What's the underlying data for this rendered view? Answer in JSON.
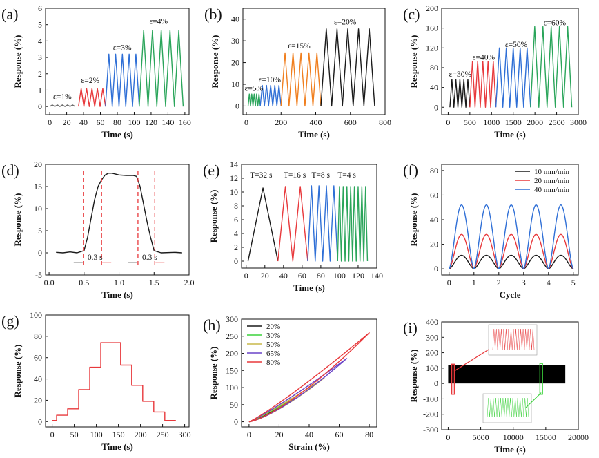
{
  "chart_data": [
    {
      "panel": "(a)",
      "type": "line",
      "xlabel": "Time (s)",
      "ylabel": "Response (%)",
      "xlim": [
        -5,
        165
      ],
      "ylim": [
        -0.5,
        6
      ],
      "xticks": [
        0,
        20,
        40,
        60,
        80,
        100,
        120,
        140,
        160
      ],
      "yticks": [
        0,
        1,
        2,
        3,
        4,
        5,
        6
      ],
      "annotations": [
        {
          "text": "ε=1%",
          "x": 4,
          "y": 0.45
        },
        {
          "text": "ε=2%",
          "x": 37,
          "y": 1.45
        },
        {
          "text": "ε=3%",
          "x": 75,
          "y": 3.45
        },
        {
          "text": "ε=4%",
          "x": 118,
          "y": 5.05
        }
      ],
      "series": [
        {
          "color": "#707070",
          "wave": "tri",
          "t0": 0,
          "t1": 30,
          "cycles": 5,
          "peak": 0.1
        },
        {
          "color": "#e8393c",
          "wave": "tri",
          "t0": 34,
          "t1": 66,
          "cycles": 5,
          "peak": 1.1
        },
        {
          "color": "#2f6fd6",
          "wave": "tri",
          "t0": 66,
          "t1": 106,
          "cycles": 5,
          "peak": 3.2
        },
        {
          "color": "#2aa55a",
          "wave": "tri",
          "t0": 106,
          "t1": 158,
          "cycles": 5,
          "peak": 4.65
        }
      ]
    },
    {
      "panel": "(b)",
      "type": "line",
      "xlabel": "Time (s)",
      "ylabel": "Response (%)",
      "xlim": [
        -20,
        800
      ],
      "ylim": [
        -4,
        45
      ],
      "xticks": [
        0,
        200,
        400,
        600,
        800
      ],
      "yticks": [
        0,
        10,
        20,
        30,
        40
      ],
      "annotations": [
        {
          "text": "ε=5%",
          "x": -10,
          "y": 7
        },
        {
          "text": "ε=10%",
          "x": 70,
          "y": 11
        },
        {
          "text": "ε=15%",
          "x": 240,
          "y": 26.5
        },
        {
          "text": "ε=20%",
          "x": 505,
          "y": 37.5
        }
      ],
      "series": [
        {
          "color": "#2aa55a",
          "wave": "tri",
          "t0": 10,
          "t1": 80,
          "cycles": 5,
          "peak": 5.5
        },
        {
          "color": "#2f6fd6",
          "wave": "tri",
          "t0": 80,
          "t1": 200,
          "cycles": 5,
          "peak": 9.5
        },
        {
          "color": "#f07f1f",
          "wave": "tri",
          "t0": 200,
          "t1": 430,
          "cycles": 5,
          "peak": 24.5
        },
        {
          "color": "#1a1a1a",
          "wave": "tri",
          "t0": 430,
          "t1": 740,
          "cycles": 5,
          "peak": 35.5
        }
      ]
    },
    {
      "panel": "(c)",
      "type": "line",
      "xlabel": "Time (s)",
      "ylabel": "Response (%)",
      "xlim": [
        -150,
        3000
      ],
      "ylim": [
        -15,
        200
      ],
      "xticks": [
        0,
        500,
        1000,
        1500,
        2000,
        2500,
        3000
      ],
      "yticks": [
        0,
        40,
        80,
        120,
        160,
        200
      ],
      "annotations": [
        {
          "text": "ε=30%",
          "x": 20,
          "y": 62
        },
        {
          "text": "ε=40%",
          "x": 560,
          "y": 96
        },
        {
          "text": "ε=50%",
          "x": 1310,
          "y": 122
        },
        {
          "text": "ε=60%",
          "x": 2200,
          "y": 166
        }
      ],
      "series": [
        {
          "color": "#1a1a1a",
          "wave": "tri",
          "t0": 40,
          "t1": 500,
          "cycles": 5,
          "peak": 56
        },
        {
          "color": "#e8393c",
          "wave": "tri",
          "t0": 500,
          "t1": 1100,
          "cycles": 5,
          "peak": 93
        },
        {
          "color": "#2f6fd6",
          "wave": "tri",
          "t0": 1100,
          "t1": 1900,
          "cycles": 5,
          "peak": 120
        },
        {
          "color": "#2aa55a",
          "wave": "tri",
          "t0": 1900,
          "t1": 2850,
          "cycles": 5,
          "peak": 163
        }
      ]
    },
    {
      "panel": "(d)",
      "type": "line",
      "xlabel": "Time (s)",
      "ylabel": "Response (%)",
      "xlim": [
        -0.05,
        2.0
      ],
      "ylim": [
        -5,
        20
      ],
      "xticks": [
        0.0,
        0.5,
        1.0,
        1.5,
        2.0
      ],
      "xtick_labels": [
        "0.0",
        "0.5",
        "1.0",
        "1.5",
        "2.0"
      ],
      "yticks": [
        -5,
        0,
        5,
        10,
        15,
        20
      ],
      "vlines": [
        0.49,
        0.75,
        1.27,
        1.51
      ],
      "annotations": [
        {
          "text": "0.3 s",
          "x": 0.55,
          "y": -1.6
        },
        {
          "text": "0.3 s",
          "x": 1.33,
          "y": -1.6
        }
      ],
      "series": [
        {
          "color": "#1a1a1a",
          "wave": "points",
          "x": [
            0.1,
            0.2,
            0.3,
            0.4,
            0.5,
            0.55,
            0.6,
            0.65,
            0.7,
            0.75,
            0.8,
            0.85,
            0.9,
            1.0,
            1.1,
            1.2,
            1.25,
            1.3,
            1.35,
            1.4,
            1.45,
            1.5,
            1.6,
            1.8,
            1.9
          ],
          "y": [
            0.1,
            0.0,
            0.2,
            0.0,
            0.5,
            3.5,
            7.8,
            12.0,
            15.0,
            16.5,
            17.6,
            18.0,
            18.0,
            17.6,
            17.5,
            17.5,
            17.3,
            15.0,
            11.0,
            7.0,
            3.5,
            0.5,
            0.0,
            0.1,
            0.0
          ]
        }
      ]
    },
    {
      "panel": "(e)",
      "type": "line",
      "xlabel": "Time (s)",
      "ylabel": "Response (%)",
      "xlim": [
        -5,
        140
      ],
      "ylim": [
        -1,
        14
      ],
      "xticks": [
        0,
        20,
        40,
        60,
        80,
        100,
        120,
        140
      ],
      "yticks": [
        0,
        2,
        4,
        6,
        8,
        10,
        12,
        14
      ],
      "annotations": [
        {
          "text": "T=32 s",
          "x": 4,
          "y": 12.1
        },
        {
          "text": "T=16 s",
          "x": 40,
          "y": 12.1
        },
        {
          "text": "T=8 s",
          "x": 70,
          "y": 12.1
        },
        {
          "text": "T=4 s",
          "x": 98,
          "y": 12.1
        }
      ],
      "series": [
        {
          "color": "#1a1a1a",
          "wave": "tri",
          "t0": 2,
          "t1": 34,
          "cycles": 1,
          "peak": 10.6
        },
        {
          "color": "#e8393c",
          "wave": "tri",
          "t0": 34,
          "t1": 66,
          "cycles": 2,
          "peak": 10.8
        },
        {
          "color": "#2f6fd6",
          "wave": "tri",
          "t0": 66,
          "t1": 98,
          "cycles": 4,
          "peak": 10.9
        },
        {
          "color": "#2aa55a",
          "wave": "tri",
          "t0": 98,
          "t1": 130,
          "cycles": 8,
          "peak": 10.8
        }
      ]
    },
    {
      "panel": "(f)",
      "type": "line",
      "xlabel": "Cycle",
      "ylabel": "Response (%)",
      "xlim": [
        -0.3,
        5.2
      ],
      "ylim": [
        -5,
        85
      ],
      "xticks": [
        0,
        1,
        2,
        3,
        4,
        5
      ],
      "yticks": [
        0,
        20,
        40,
        60,
        80
      ],
      "legend": "top-right",
      "series": [
        {
          "name": "10 mm/min",
          "color": "#1a1a1a",
          "wave": "smooth",
          "t0": 0,
          "t1": 5,
          "cycles": 5,
          "peak": 11
        },
        {
          "name": "20 mm/min",
          "color": "#e8393c",
          "wave": "smooth",
          "t0": 0,
          "t1": 5,
          "cycles": 5,
          "peak": 28
        },
        {
          "name": "40 mm/min",
          "color": "#2f6fd6",
          "wave": "smooth",
          "t0": 0,
          "t1": 5,
          "cycles": 5,
          "peak": 52
        }
      ]
    },
    {
      "panel": "(g)",
      "type": "line",
      "xlabel": "Time (s)",
      "ylabel": "Response (%)",
      "xlim": [
        -15,
        310
      ],
      "ylim": [
        -5,
        100
      ],
      "xticks": [
        0,
        50,
        100,
        150,
        200,
        250,
        300
      ],
      "yticks": [
        0,
        20,
        40,
        60,
        80,
        100
      ],
      "series": [
        {
          "color": "#e8393c",
          "wave": "steps",
          "levels": [
            [
              0,
              1
            ],
            [
              10,
              6
            ],
            [
              35,
              12
            ],
            [
              60,
              30
            ],
            [
              85,
              51
            ],
            [
              110,
              74
            ],
            [
              155,
              53
            ],
            [
              180,
              34
            ],
            [
              205,
              19
            ],
            [
              230,
              9
            ],
            [
              255,
              1
            ],
            [
              280,
              1
            ]
          ]
        }
      ]
    },
    {
      "panel": "(h)",
      "type": "line",
      "xlabel": "Strain (%)",
      "ylabel": "Response (%)",
      "xlim": [
        -5,
        85
      ],
      "ylim": [
        -15,
        300
      ],
      "xticks": [
        0,
        20,
        40,
        60,
        80
      ],
      "yticks": [
        0,
        50,
        100,
        150,
        200,
        250,
        300
      ],
      "legend": "top-left",
      "series": [
        {
          "name": "20%",
          "color": "#1a1a1a",
          "wave": "loop",
          "xmax": 20,
          "peak": 42
        },
        {
          "name": "30%",
          "color": "#3cd23c",
          "wave": "loop",
          "xmax": 30,
          "peak": 68
        },
        {
          "name": "50%",
          "color": "#c9b84a",
          "wave": "loop",
          "xmax": 50,
          "peak": 128
        },
        {
          "name": "65%",
          "color": "#6a44c8",
          "wave": "loop",
          "xmax": 65,
          "peak": 185
        },
        {
          "name": "80%",
          "color": "#e8393c",
          "wave": "loop",
          "xmax": 80,
          "peak": 260
        }
      ]
    },
    {
      "panel": "(i)",
      "type": "line",
      "xlabel": "Time   (s)",
      "ylabel": "Response (%)",
      "xlim": [
        -1000,
        20000
      ],
      "ylim": [
        -300,
        400
      ],
      "xticks": [
        0,
        5000,
        10000,
        15000,
        20000
      ],
      "yticks": [
        -300,
        -200,
        -100,
        0,
        100,
        200,
        300,
        400
      ],
      "series": [
        {
          "color": "#000000",
          "wave": "band",
          "t0": 0,
          "t1": 18000,
          "low": 0,
          "high": 120
        }
      ],
      "highlights": [
        {
          "color": "#e8393c",
          "x0": 550,
          "x1": 950,
          "y0": -70,
          "y1": 125
        },
        {
          "color": "#3cd23c",
          "x0": 14100,
          "x1": 14500,
          "y0": -70,
          "y1": 130
        }
      ]
    }
  ]
}
